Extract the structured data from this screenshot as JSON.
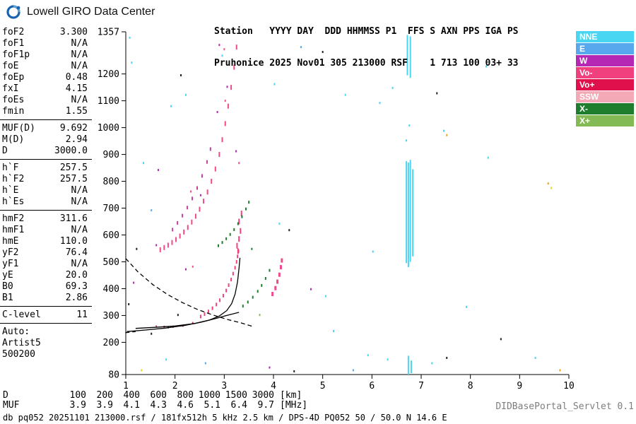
{
  "header": {
    "brand": "Lowell GIRO Data Center",
    "station_line1": "Station   YYYY DAY  DDD HHMMSS P1  FFS S AXN PPS IGA PS",
    "station_line2": "Pruhonice 2025 Nov01 305 213000 RSF    1 713 100 03+ 33"
  },
  "left_panel": {
    "groups": [
      {
        "divider": true,
        "rows": [
          {
            "label": "foF2",
            "value": "3.300"
          },
          {
            "label": "foF1",
            "value": "N/A"
          },
          {
            "label": "foF1p",
            "value": "N/A"
          },
          {
            "label": "foE",
            "value": "N/A"
          },
          {
            "label": "foEp",
            "value": "0.48"
          },
          {
            "label": "fxI",
            "value": "4.15"
          },
          {
            "label": "foEs",
            "value": "N/A"
          },
          {
            "label": "fmin",
            "value": "1.55"
          }
        ]
      },
      {
        "divider": true,
        "rows": [
          {
            "label": "MUF(D)",
            "value": "9.692"
          },
          {
            "label": "M(D)",
            "value": "2.94"
          },
          {
            "label": "D",
            "value": "3000.0"
          }
        ]
      },
      {
        "divider": true,
        "rows": [
          {
            "label": "h`F",
            "value": "257.5"
          },
          {
            "label": "h`F2",
            "value": "257.5"
          },
          {
            "label": "h`E",
            "value": "N/A"
          },
          {
            "label": "h`Es",
            "value": "N/A"
          }
        ]
      },
      {
        "divider": true,
        "rows": [
          {
            "label": "hmF2",
            "value": "311.6"
          },
          {
            "label": "hmF1",
            "value": "N/A"
          },
          {
            "label": "hmE",
            "value": "110.0"
          },
          {
            "label": "yF2",
            "value": "76.4"
          },
          {
            "label": "yF1",
            "value": "N/A"
          },
          {
            "label": "yE",
            "value": "20.0"
          },
          {
            "label": "B0",
            "value": "69.3"
          },
          {
            "label": "B1",
            "value": "2.86"
          }
        ]
      },
      {
        "divider": true,
        "rows": [
          {
            "label": "C-level",
            "value": "11"
          }
        ]
      },
      {
        "divider": false,
        "rows": [
          {
            "text": "Auto:"
          },
          {
            "text": "Artist5"
          },
          {
            "text": "500200"
          }
        ]
      }
    ]
  },
  "legend": {
    "items": [
      {
        "label": "NNE",
        "color": "#49d6f2"
      },
      {
        "label": "E",
        "color": "#58a8ee"
      },
      {
        "label": "W",
        "color": "#b428b4"
      },
      {
        "label": "Vo-",
        "color": "#f0417e"
      },
      {
        "label": "Vo+",
        "color": "#e0104c"
      },
      {
        "label": "SSW",
        "color": "#f4aab6"
      },
      {
        "label": "X-",
        "color": "#1e7e2e"
      },
      {
        "label": "X+",
        "color": "#84ba54"
      }
    ]
  },
  "chart_data": {
    "type": "scatter",
    "title": "Digisonde ionogram Pruhonice 2025 Nov01 213000 UT: echo virtual height [km] vs frequency [MHz]",
    "axes": {
      "x": {
        "min": 1,
        "max": 10,
        "ticks": [
          1,
          2,
          3,
          4,
          5,
          6,
          7,
          8,
          9,
          10
        ],
        "unit": "MHz"
      },
      "y": {
        "min": 80,
        "max": 1357,
        "ticks": [
          1357,
          1200,
          1100,
          1000,
          900,
          800,
          700,
          600,
          500,
          400,
          300,
          200,
          80
        ],
        "unit": "km"
      }
    },
    "series": [
      {
        "name": "f2-ordinary-trace",
        "color": "#f0417e",
        "marker": [
          2,
          5
        ],
        "points": [
          [
            2.52,
            296
          ],
          [
            2.6,
            305
          ],
          [
            2.68,
            315
          ],
          [
            2.76,
            327
          ],
          [
            2.84,
            341
          ],
          [
            2.91,
            357
          ],
          [
            2.98,
            374
          ],
          [
            3.04,
            393
          ],
          [
            3.09,
            413
          ],
          [
            3.14,
            434
          ],
          [
            3.18,
            456
          ],
          [
            3.22,
            478
          ],
          [
            3.25,
            500
          ],
          [
            3.27,
            520
          ],
          [
            3.29,
            540
          ]
        ]
      },
      {
        "name": "f2-trace-flat-low",
        "color": "#c03a78",
        "marker": [
          2,
          3
        ],
        "points": [
          [
            1.62,
            259
          ],
          [
            1.78,
            258
          ],
          [
            1.96,
            258
          ],
          [
            2.16,
            262
          ],
          [
            2.36,
            272
          ]
        ]
      },
      {
        "name": "f2-second-hop",
        "color": "#ee4a8c",
        "marker": [
          2,
          7
        ],
        "points": [
          [
            1.7,
            545
          ],
          [
            1.78,
            553
          ],
          [
            1.86,
            562
          ],
          [
            1.94,
            572
          ],
          [
            2.02,
            583
          ],
          [
            2.1,
            596
          ],
          [
            2.18,
            611
          ],
          [
            2.26,
            628
          ],
          [
            2.34,
            648
          ],
          [
            2.42,
            670
          ],
          [
            2.5,
            696
          ],
          [
            2.58,
            726
          ],
          [
            2.66,
            760
          ],
          [
            2.74,
            800
          ],
          [
            2.82,
            846
          ],
          [
            2.9,
            900
          ],
          [
            2.96,
            955
          ],
          [
            3.02,
            1015
          ],
          [
            3.08,
            1080
          ],
          [
            3.14,
            1150
          ],
          [
            3.2,
            1225
          ],
          [
            3.25,
            1300
          ]
        ]
      },
      {
        "name": "spread-f-arc",
        "color": "#c040a0",
        "marker": [
          2,
          5
        ],
        "points": [
          [
            1.95,
            620
          ],
          [
            2.05,
            645
          ],
          [
            2.15,
            672
          ],
          [
            2.25,
            702
          ],
          [
            2.35,
            736
          ],
          [
            2.45,
            775
          ],
          [
            2.55,
            820
          ],
          [
            2.65,
            872
          ],
          [
            2.72,
            920
          ]
        ]
      },
      {
        "name": "spread-f-cusp",
        "color": "#f0417e",
        "marker": [
          2,
          8
        ],
        "points": [
          [
            3.26,
            560
          ],
          [
            3.3,
            585
          ],
          [
            3.33,
            615
          ],
          [
            3.3,
            650
          ],
          [
            3.35,
            680
          ],
          [
            3.28,
            540
          ]
        ]
      },
      {
        "name": "x-mode-first-hop",
        "color": "#1e7e2e",
        "marker": [
          2,
          4
        ],
        "points": [
          [
            3.38,
            335
          ],
          [
            3.48,
            350
          ],
          [
            3.58,
            368
          ],
          [
            3.68,
            390
          ],
          [
            3.76,
            412
          ],
          [
            3.84,
            438
          ],
          [
            3.92,
            468
          ]
        ]
      },
      {
        "name": "x-mode-second-hop",
        "color": "#1e7e2e",
        "marker": [
          2,
          4
        ],
        "points": [
          [
            2.88,
            560
          ],
          [
            2.96,
            572
          ],
          [
            3.04,
            586
          ],
          [
            3.12,
            602
          ],
          [
            3.2,
            620
          ],
          [
            3.28,
            642
          ],
          [
            3.36,
            668
          ],
          [
            3.44,
            697
          ],
          [
            3.5,
            722
          ]
        ]
      },
      {
        "name": "x-mode-cusp-fxI",
        "color": "#ee4a8c",
        "marker": [
          3,
          6
        ],
        "points": [
          [
            3.98,
            380
          ],
          [
            4.04,
            402
          ],
          [
            4.08,
            426
          ],
          [
            4.12,
            452
          ],
          [
            4.15,
            480
          ],
          [
            4.17,
            505
          ]
        ]
      }
    ],
    "rfi": {
      "color": "#49d6f2",
      "columns": [
        {
          "f": 6.7,
          "h1": 495,
          "h2": 875
        },
        {
          "f": 6.74,
          "h1": 480,
          "h2": 870
        },
        {
          "f": 6.78,
          "h1": 500,
          "h2": 880
        },
        {
          "f": 6.83,
          "h1": 520,
          "h2": 845
        },
        {
          "f": 6.72,
          "h1": 1195,
          "h2": 1345
        },
        {
          "f": 6.78,
          "h1": 1185,
          "h2": 1340
        },
        {
          "f": 6.74,
          "h1": 80,
          "h2": 150
        },
        {
          "f": 6.8,
          "h1": 85,
          "h2": 132
        }
      ]
    },
    "noise": {
      "colors": {
        "c": "#49d6f2",
        "b": "#58a8ee",
        "m": "#b428b4",
        "p": "#f0508a",
        "r": "#e0104c",
        "s": "#f4aab6",
        "g": "#1e7e2e",
        "l": "#84ba54",
        "k": "#222222",
        "o": "#f0a020",
        "y": "#e8d820"
      },
      "points": [
        [
          1.08,
          1335,
          "c"
        ],
        [
          2.12,
          1195,
          "k"
        ],
        [
          2.22,
          1122,
          "c"
        ],
        [
          1.92,
          1080,
          "c"
        ],
        [
          2.9,
          1308,
          "m"
        ],
        [
          3.0,
          1292,
          "p"
        ],
        [
          2.96,
          1268,
          "c"
        ],
        [
          3.06,
          1152,
          "m"
        ],
        [
          3.02,
          1100,
          "p"
        ],
        [
          2.86,
          1058,
          "m"
        ],
        [
          4.02,
          1162,
          "c"
        ],
        [
          5.0,
          1282,
          "k"
        ],
        [
          4.56,
          1300,
          "b"
        ],
        [
          6.42,
          1148,
          "c"
        ],
        [
          7.32,
          1128,
          "k"
        ],
        [
          6.16,
          1092,
          "c"
        ],
        [
          7.46,
          988,
          "c"
        ],
        [
          7.52,
          972,
          "o"
        ],
        [
          8.32,
          1228,
          "c"
        ],
        [
          8.36,
          888,
          "c"
        ],
        [
          9.58,
          792,
          "o"
        ],
        [
          9.64,
          775,
          "y"
        ],
        [
          1.36,
          868,
          "c"
        ],
        [
          1.66,
          842,
          "m"
        ],
        [
          1.52,
          692,
          "b"
        ],
        [
          2.32,
          762,
          "p"
        ],
        [
          2.52,
          748,
          "m"
        ],
        [
          1.22,
          548,
          "k"
        ],
        [
          1.62,
          562,
          "m"
        ],
        [
          4.12,
          642,
          "c"
        ],
        [
          4.32,
          618,
          "k"
        ],
        [
          5.92,
          152,
          "c"
        ],
        [
          6.32,
          136,
          "c"
        ],
        [
          5.62,
          96,
          "b"
        ],
        [
          4.42,
          92,
          "k"
        ],
        [
          3.92,
          106,
          "m"
        ],
        [
          2.62,
          122,
          "b"
        ],
        [
          1.82,
          136,
          "c"
        ],
        [
          1.32,
          96,
          "y"
        ],
        [
          7.22,
          122,
          "c"
        ],
        [
          7.52,
          142,
          "k"
        ],
        [
          6.02,
          538,
          "c"
        ],
        [
          5.22,
          242,
          "c"
        ],
        [
          2.06,
          302,
          "k"
        ],
        [
          1.86,
          256,
          "k"
        ],
        [
          1.52,
          232,
          "k"
        ],
        [
          2.36,
          482,
          "p"
        ],
        [
          2.22,
          472,
          "m"
        ],
        [
          3.56,
          548,
          "g"
        ],
        [
          3.72,
          302,
          "l"
        ],
        [
          7.92,
          332,
          "c"
        ],
        [
          8.62,
          212,
          "k"
        ],
        [
          9.32,
          142,
          "c"
        ],
        [
          9.82,
          96,
          "o"
        ],
        [
          4.76,
          398,
          "m"
        ],
        [
          5.06,
          372,
          "c"
        ],
        [
          6.76,
          1008,
          "c"
        ],
        [
          6.7,
          952,
          "c"
        ],
        [
          1.12,
          1242,
          "c"
        ],
        [
          1.16,
          422,
          "m"
        ],
        [
          1.06,
          342,
          "k"
        ],
        [
          5.46,
          1122,
          "c"
        ],
        [
          3.3,
          868,
          "p"
        ],
        [
          3.24,
          912,
          "m"
        ]
      ]
    },
    "curves": [
      {
        "name": "true-height-profile",
        "style": "solid",
        "points": [
          [
            1.02,
            240
          ],
          [
            1.4,
            246
          ],
          [
            1.8,
            253
          ],
          [
            2.2,
            263
          ],
          [
            2.55,
            276
          ],
          [
            2.85,
            290
          ],
          [
            3.05,
            300
          ],
          [
            3.2,
            307
          ],
          [
            3.3,
            311.6
          ]
        ]
      },
      {
        "name": "artist-trace-fit",
        "style": "solid",
        "points": [
          [
            1.2,
            252
          ],
          [
            1.6,
            256
          ],
          [
            2.0,
            261
          ],
          [
            2.4,
            270
          ],
          [
            2.7,
            283
          ],
          [
            2.9,
            298
          ],
          [
            3.05,
            318
          ],
          [
            3.15,
            344
          ],
          [
            3.22,
            380
          ],
          [
            3.27,
            425
          ],
          [
            3.3,
            475
          ],
          [
            3.32,
            515
          ]
        ]
      },
      {
        "name": "muf-transmission-curve",
        "style": "dashed",
        "points": [
          [
            1.0,
            512
          ],
          [
            1.25,
            462
          ],
          [
            1.55,
            415
          ],
          [
            1.85,
            378
          ],
          [
            2.15,
            348
          ],
          [
            2.45,
            323
          ],
          [
            2.75,
            303
          ],
          [
            3.05,
            286
          ],
          [
            3.35,
            272
          ],
          [
            3.6,
            258
          ]
        ]
      },
      {
        "name": "trace-extrapolation",
        "style": "dashed",
        "points": [
          [
            0.99,
            236
          ],
          [
            1.2,
            240
          ]
        ]
      }
    ]
  },
  "bottom": {
    "d_row": {
      "label": "D",
      "values": [
        "100",
        "200",
        "400",
        "600",
        "800",
        "1000",
        "1500",
        "3000"
      ],
      "unit": "[km]"
    },
    "muf_row": {
      "label": "MUF",
      "values": [
        "3.9",
        "3.9",
        "4.1",
        "4.3",
        "4.6",
        "5.1",
        "6.4",
        "9.7"
      ],
      "unit": "[MHz]"
    },
    "footer": "db pq052 20251101 213000.rsf / 181fx512h 5 kHz 2.5 km / DPS-4D PQ052 50 / 50.0 N 14.6 E",
    "servlet": "DIDBasePortal_Servlet 0.1"
  }
}
